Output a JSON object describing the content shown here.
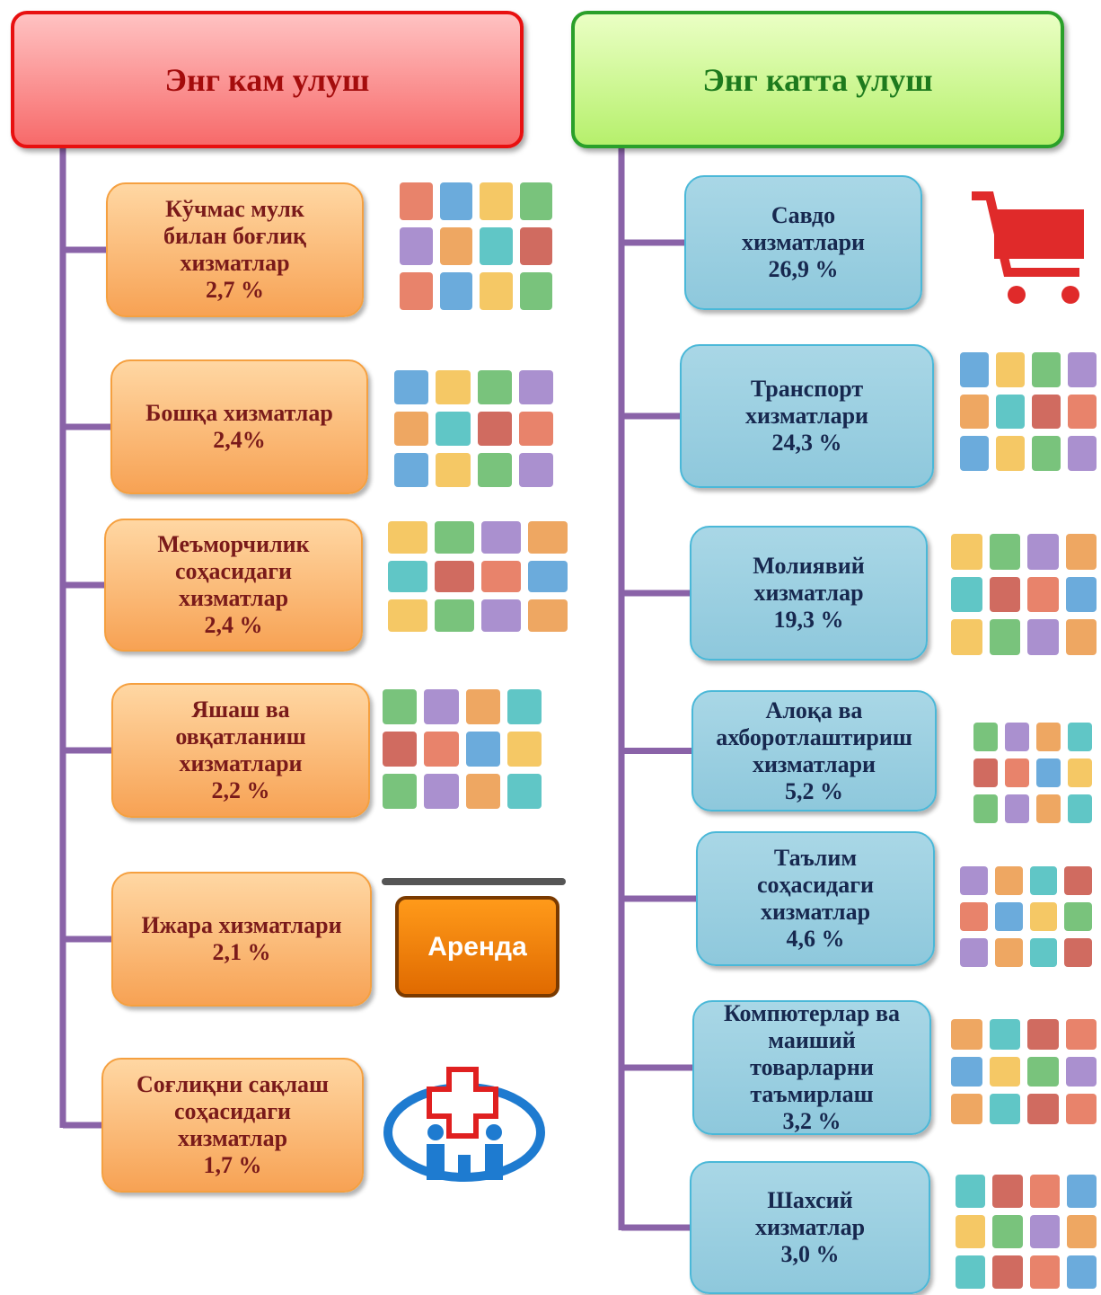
{
  "left": {
    "title": "Энг кам улуш",
    "items": [
      {
        "lines": [
          "Кўчмас мулк",
          "билан боғлиқ",
          "хизматлар"
        ],
        "share": "2,7 %"
      },
      {
        "lines": [
          "Бошқа хизматлар"
        ],
        "share": "2,4%"
      },
      {
        "lines": [
          "Меъморчилик",
          "соҳасидаги",
          "хизматлар"
        ],
        "share": "2,4 %"
      },
      {
        "lines": [
          "Яшаш ва",
          "овқатланиш",
          "хизматлари"
        ],
        "share": "2,2 %"
      },
      {
        "lines": [
          "Ижара хизматлари"
        ],
        "share": "2,1 %",
        "image_text": "Аренда"
      },
      {
        "lines": [
          "Соғлиқни сақлаш",
          "соҳасидаги",
          "хизматлар"
        ],
        "share": "1,7 %"
      }
    ]
  },
  "right": {
    "title": "Энг катта улуш",
    "items": [
      {
        "lines": [
          "Савдо",
          "хизматлари"
        ],
        "share": "26,9 %"
      },
      {
        "lines": [
          "Транспорт",
          "хизматлари"
        ],
        "share": "24,3 %"
      },
      {
        "lines": [
          "Молиявий",
          "хизматлар"
        ],
        "share": "19,3 %"
      },
      {
        "lines": [
          "Алоқа ва",
          "ахборотлаштириш",
          "хизматлари"
        ],
        "share": "5,2 %"
      },
      {
        "lines": [
          "Таълим",
          "соҳасидаги",
          "хизматлар"
        ],
        "share": "4,6 %"
      },
      {
        "lines": [
          "Компютерлар ва",
          "маиший",
          "товарларни",
          "таъмирлаш"
        ],
        "share": "3,2 %"
      },
      {
        "lines": [
          "Шахсий",
          "хизматлар"
        ],
        "share": "3,0 %"
      }
    ]
  }
}
